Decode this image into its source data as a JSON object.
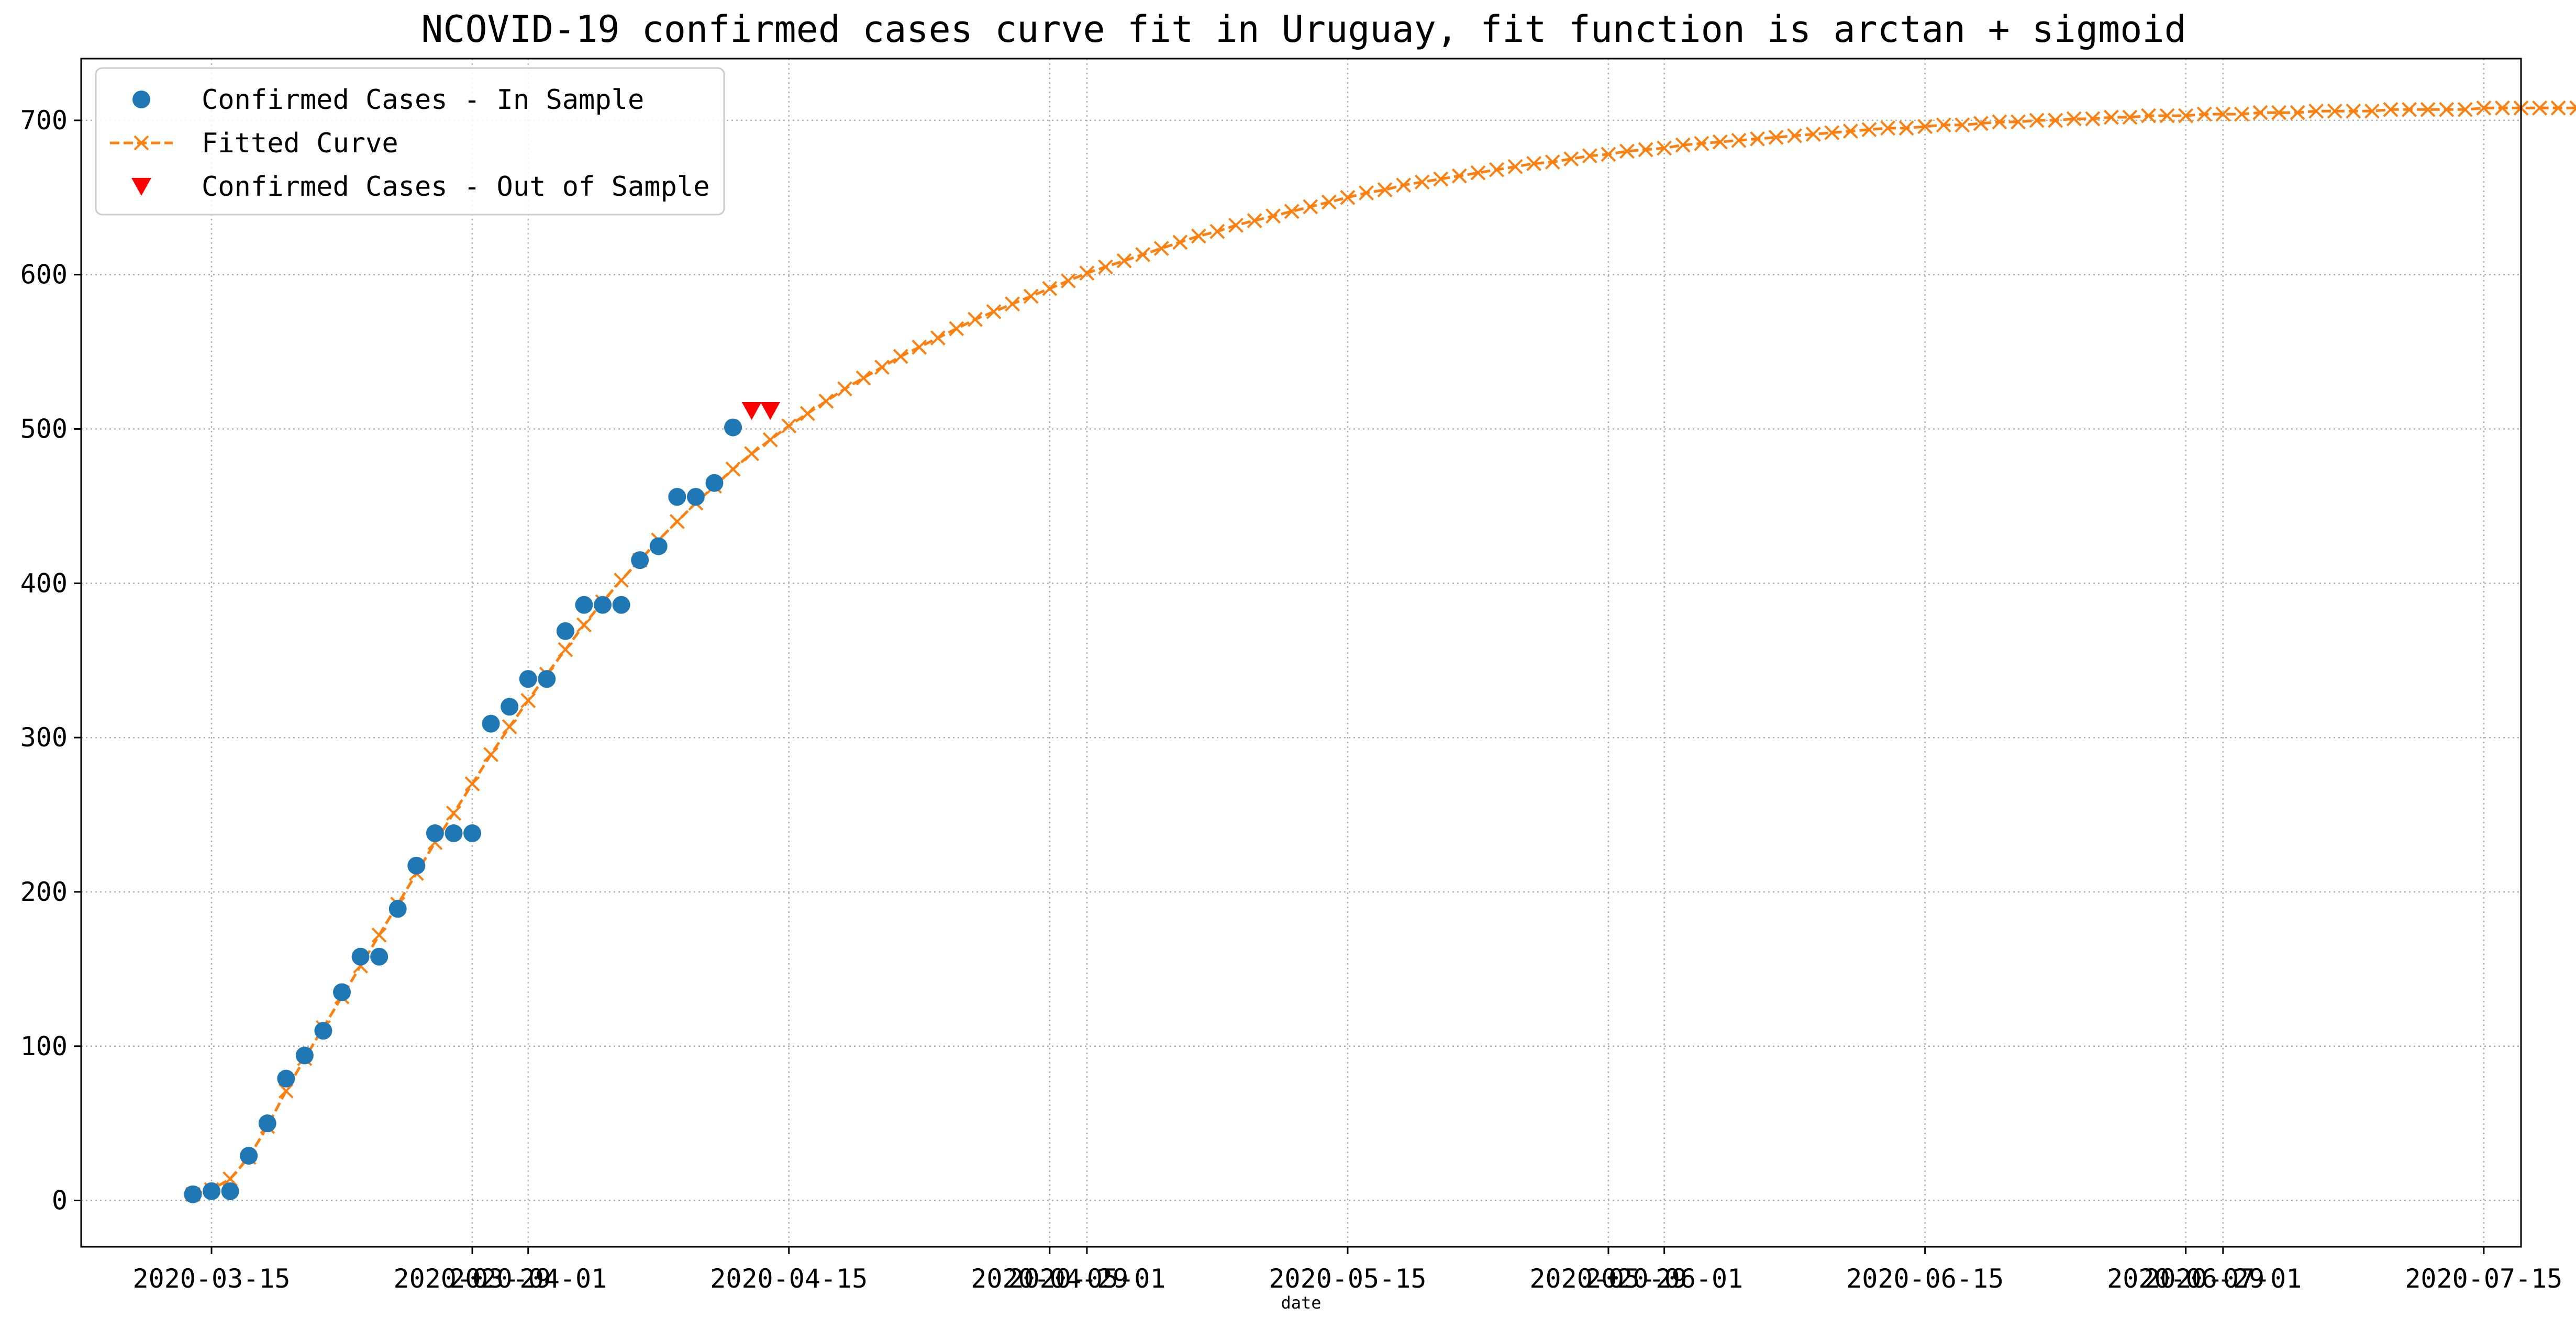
{
  "chart_data": {
    "type": "line",
    "title": "NCOVID-19 confirmed cases curve fit in Uruguay, fit function is arctan + sigmoid",
    "xlabel": "date",
    "ylabel": "",
    "x_type": "date",
    "xlim": [
      "2020-03-08",
      "2020-07-17"
    ],
    "ylim": [
      -30,
      740
    ],
    "grid": true,
    "grid_style": "dotted",
    "legend_position": "upper-left",
    "x_ticks": [
      {
        "date": "2020-03-15",
        "label": "2020-03-15"
      },
      {
        "date": "2020-03-29",
        "label": "2020-03-29"
      },
      {
        "date": "2020-04-01",
        "label": "2020-04-01"
      },
      {
        "date": "2020-04-15",
        "label": "2020-04-15"
      },
      {
        "date": "2020-04-29",
        "label": "2020-04-29"
      },
      {
        "date": "2020-05-01",
        "label": "2020-05-01"
      },
      {
        "date": "2020-05-15",
        "label": "2020-05-15"
      },
      {
        "date": "2020-05-29",
        "label": "2020-05-29"
      },
      {
        "date": "2020-06-01",
        "label": "2020-06-01"
      },
      {
        "date": "2020-06-15",
        "label": "2020-06-15"
      },
      {
        "date": "2020-06-29",
        "label": "2020-06-29"
      },
      {
        "date": "2020-07-01",
        "label": "2020-07-01"
      },
      {
        "date": "2020-07-15",
        "label": "2020-07-15"
      }
    ],
    "y_ticks": [
      0,
      100,
      200,
      300,
      400,
      500,
      600,
      700
    ],
    "series": [
      {
        "name": "Confirmed Cases - In Sample",
        "style": "scatter",
        "marker": "circle",
        "color": "#1f77b4",
        "start_date": "2020-03-14",
        "values": [
          4,
          6,
          6,
          29,
          50,
          79,
          94,
          110,
          135,
          158,
          158,
          189,
          217,
          238,
          238,
          238,
          309,
          320,
          338,
          338,
          369,
          386,
          386,
          386,
          415,
          424,
          456,
          456,
          465,
          501
        ]
      },
      {
        "name": "Fitted Curve",
        "style": "dashed-line",
        "marker": "x",
        "color": "#ff7f0e",
        "start_date": "2020-03-14",
        "values": [
          4,
          7,
          14,
          28,
          48,
          71,
          92,
          112,
          132,
          152,
          172,
          192,
          212,
          232,
          251,
          270,
          289,
          307,
          324,
          341,
          357,
          373,
          388,
          402,
          415,
          428,
          440,
          452,
          463,
          474,
          484,
          493,
          502,
          510,
          518,
          526,
          533,
          540,
          547,
          553,
          559,
          565,
          571,
          576,
          581,
          586,
          591,
          596,
          601,
          605,
          609,
          613,
          617,
          621,
          625,
          628,
          632,
          635,
          638,
          641,
          644,
          647,
          650,
          653,
          655,
          658,
          660,
          662,
          664,
          666,
          668,
          670,
          672,
          673,
          675,
          677,
          678,
          680,
          681,
          682,
          684,
          685,
          686,
          687,
          688,
          689,
          690,
          691,
          692,
          693,
          694,
          695,
          695,
          696,
          697,
          697,
          698,
          699,
          699,
          700,
          700,
          701,
          701,
          702,
          702,
          703,
          703,
          703,
          704,
          704,
          704,
          705,
          705,
          705,
          706,
          706,
          706,
          706,
          707,
          707,
          707,
          707,
          707,
          708,
          708,
          708,
          708,
          708,
          708,
          709,
          709,
          709
        ]
      },
      {
        "name": "Confirmed Cases - Out of Sample",
        "style": "scatter",
        "marker": "triangle-down",
        "color": "#ff0000",
        "start_date": "2020-04-13",
        "values": [
          512,
          512
        ]
      }
    ]
  }
}
